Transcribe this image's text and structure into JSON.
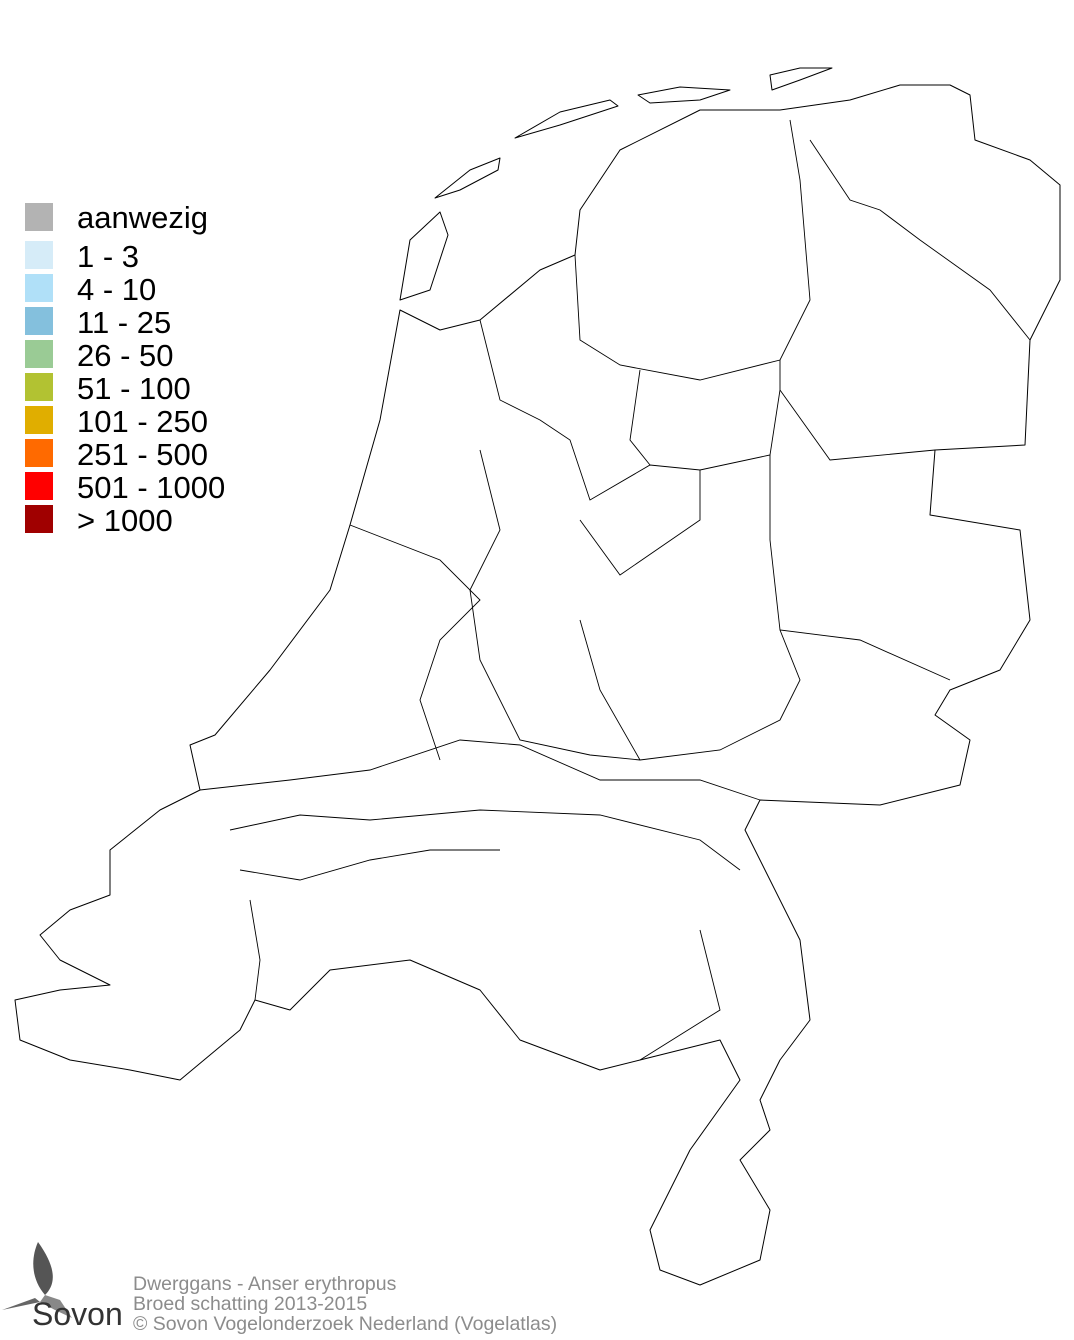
{
  "legend": {
    "items": [
      {
        "label": "aanwezig",
        "color": "#b3b3b3"
      },
      {
        "label": "1 - 3",
        "color": "#d6ecf8"
      },
      {
        "label": "4 - 10",
        "color": "#b0e0f8"
      },
      {
        "label": "11 - 25",
        "color": "#84c0dd"
      },
      {
        "label": "26 - 50",
        "color": "#9acb95"
      },
      {
        "label": "51 - 100",
        "color": "#b2c232"
      },
      {
        "label": "101 - 250",
        "color": "#e0ae00"
      },
      {
        "label": "251 - 500",
        "color": "#ff6a00"
      },
      {
        "label": "501 - 1000",
        "color": "#ff0000"
      },
      {
        "label": "> 1000",
        "color": "#a00000"
      }
    ]
  },
  "footer": {
    "line1": "Dwerggans - Anser erythropus",
    "line2": "Broed schatting 2013-2015",
    "line3": "© Sovon Vogelonderzoek Nederland (Vogelatlas)"
  },
  "logo": {
    "text": "Sovon",
    "icon": "swallow-icon"
  }
}
